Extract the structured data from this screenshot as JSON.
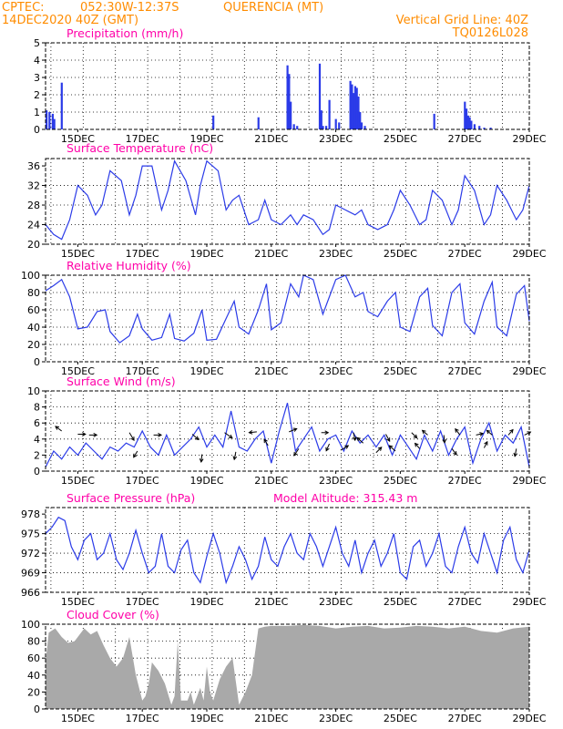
{
  "header": {
    "source": "CPTEC:",
    "coords": "052:30W-12:37S",
    "location": "QUERENCIA (MT)",
    "date": "14DEC2020 40Z (GMT)",
    "vgrid": "Vertical Grid Line: 40Z",
    "code": "TQ0126L028"
  },
  "colors": {
    "header": "#ff8c00",
    "panel_title": "#ff00a8",
    "series": "#2b3be8",
    "cloud": "#a9a9a9",
    "arrow": "#000000"
  },
  "chart_data": [
    {
      "id": "precip",
      "type": "bar",
      "title": "Precipitation (mm/h)",
      "ylim": [
        0,
        5
      ],
      "yticks": [
        "0",
        "1",
        "2",
        "3",
        "4",
        "5"
      ],
      "xlim": [
        14.0,
        29.0
      ],
      "xticks": [
        "15DEC",
        "17DEC",
        "19DEC",
        "21DEC",
        "23DEC",
        "25DEC",
        "27DEC",
        "29DEC"
      ],
      "grid": true,
      "x": [
        14.03,
        14.12,
        14.22,
        14.27,
        14.5,
        19.2,
        20.6,
        21.5,
        21.55,
        21.6,
        21.7,
        21.8,
        22.5,
        22.55,
        22.6,
        22.7,
        22.8,
        23.0,
        23.1,
        23.45,
        23.5,
        23.55,
        23.6,
        23.65,
        23.7,
        23.75,
        23.8,
        23.9,
        26.05,
        27.0,
        27.05,
        27.1,
        27.15,
        27.2,
        27.3,
        27.45,
        27.6,
        27.8
      ],
      "values": [
        1.1,
        1.0,
        0.9,
        0.6,
        2.7,
        0.8,
        0.7,
        3.7,
        3.2,
        1.6,
        0.3,
        0.2,
        3.8,
        1.1,
        0.2,
        0.2,
        1.7,
        0.6,
        0.4,
        2.8,
        2.6,
        2.1,
        2.5,
        2.4,
        1.9,
        1.0,
        0.4,
        0.2,
        0.9,
        1.6,
        1.2,
        0.8,
        0.7,
        0.5,
        0.3,
        0.2,
        0.1,
        0.1
      ]
    },
    {
      "id": "temp",
      "type": "line",
      "title": "Surface Temperature (nC)",
      "ylim": [
        20,
        37.5
      ],
      "yticks": [
        "20",
        "24",
        "28",
        "32",
        "36"
      ],
      "xlim": [
        14.0,
        29.0
      ],
      "xticks": [
        "15DEC",
        "17DEC",
        "19DEC",
        "21DEC",
        "23DEC",
        "25DEC",
        "27DEC",
        "29DEC"
      ],
      "grid": true,
      "x": [
        14.0,
        14.25,
        14.5,
        14.75,
        15.0,
        15.3,
        15.55,
        15.75,
        16.0,
        16.35,
        16.6,
        16.8,
        17.0,
        17.3,
        17.6,
        17.8,
        18.0,
        18.35,
        18.65,
        18.8,
        19.0,
        19.35,
        19.6,
        19.8,
        20.0,
        20.3,
        20.6,
        20.8,
        21.0,
        21.3,
        21.6,
        21.8,
        22.0,
        22.3,
        22.6,
        22.8,
        23.0,
        23.3,
        23.6,
        23.8,
        24.0,
        24.3,
        24.6,
        24.8,
        25.0,
        25.3,
        25.6,
        25.8,
        26.0,
        26.3,
        26.6,
        26.8,
        27.0,
        27.3,
        27.6,
        27.8,
        28.0,
        28.3,
        28.6,
        28.8,
        29.0
      ],
      "values": [
        24,
        22,
        21,
        25,
        32,
        30,
        26,
        28,
        35,
        33,
        26,
        30,
        36,
        36,
        27,
        31,
        37,
        33,
        26,
        32,
        37,
        35,
        27,
        29,
        30,
        24,
        25,
        29,
        25,
        24,
        26,
        24,
        26,
        25,
        22,
        23,
        28,
        27,
        26,
        27,
        24,
        23,
        24,
        27,
        31,
        28,
        24,
        25,
        31,
        29,
        24,
        27,
        34,
        31,
        24,
        26,
        32,
        29,
        25,
        27,
        32
      ]
    },
    {
      "id": "rh",
      "type": "line",
      "title": "Relative Humidity (%)",
      "ylim": [
        0,
        100
      ],
      "yticks": [
        "0",
        "20",
        "40",
        "60",
        "80",
        "100"
      ],
      "xlim": [
        14.0,
        29.0
      ],
      "xticks": [
        "15DEC",
        "17DEC",
        "19DEC",
        "21DEC",
        "23DEC",
        "25DEC",
        "27DEC",
        "29DEC"
      ],
      "grid": true,
      "x": [
        14.0,
        14.25,
        14.5,
        14.75,
        15.0,
        15.3,
        15.6,
        15.85,
        16.0,
        16.3,
        16.6,
        16.85,
        17.0,
        17.3,
        17.6,
        17.85,
        18.0,
        18.3,
        18.6,
        18.85,
        19.0,
        19.3,
        19.6,
        19.85,
        20.0,
        20.3,
        20.6,
        20.85,
        21.0,
        21.3,
        21.6,
        21.85,
        22.0,
        22.3,
        22.6,
        22.85,
        23.0,
        23.3,
        23.6,
        23.85,
        24.0,
        24.3,
        24.6,
        24.85,
        25.0,
        25.3,
        25.6,
        25.85,
        26.0,
        26.3,
        26.6,
        26.85,
        27.0,
        27.3,
        27.6,
        27.85,
        28.0,
        28.3,
        28.6,
        28.85,
        29.0
      ],
      "values": [
        82,
        88,
        95,
        75,
        38,
        40,
        58,
        60,
        35,
        22,
        30,
        55,
        38,
        25,
        28,
        55,
        27,
        24,
        33,
        60,
        25,
        26,
        50,
        70,
        40,
        32,
        60,
        90,
        37,
        45,
        90,
        75,
        100,
        95,
        55,
        80,
        95,
        100,
        75,
        80,
        58,
        52,
        70,
        80,
        40,
        35,
        75,
        85,
        42,
        30,
        80,
        90,
        45,
        32,
        70,
        92,
        40,
        30,
        78,
        88,
        47
      ]
    },
    {
      "id": "wind",
      "type": "line",
      "title": "Surface Wind (m/s)",
      "ylim": [
        0,
        10
      ],
      "yticks": [
        "0",
        "2",
        "4",
        "6",
        "8",
        "10"
      ],
      "xlim": [
        14.0,
        29.0
      ],
      "xticks": [
        "15DEC",
        "17DEC",
        "19DEC",
        "21DEC",
        "23DEC",
        "25DEC",
        "27DEC",
        "29DEC"
      ],
      "grid": true,
      "x": [
        14.0,
        14.25,
        14.5,
        14.75,
        15.0,
        15.25,
        15.5,
        15.75,
        16.0,
        16.25,
        16.5,
        16.75,
        17.0,
        17.25,
        17.5,
        17.75,
        18.0,
        18.25,
        18.5,
        18.75,
        19.0,
        19.25,
        19.5,
        19.75,
        20.0,
        20.25,
        20.5,
        20.75,
        21.0,
        21.25,
        21.5,
        21.75,
        22.0,
        22.25,
        22.5,
        22.75,
        23.0,
        23.25,
        23.5,
        23.75,
        24.0,
        24.25,
        24.5,
        24.75,
        25.0,
        25.25,
        25.5,
        25.75,
        26.0,
        26.25,
        26.5,
        26.75,
        27.0,
        27.25,
        27.5,
        27.75,
        28.0,
        28.25,
        28.5,
        28.75,
        29.0
      ],
      "values": [
        0.5,
        2.5,
        1.5,
        3,
        2,
        3.5,
        2.5,
        1.5,
        3,
        2.5,
        3.5,
        3,
        5,
        3,
        2,
        4.5,
        2,
        3,
        4,
        5.5,
        3,
        4.5,
        3,
        7.5,
        3,
        2.5,
        4,
        5,
        1,
        5,
        8.5,
        2.5,
        4,
        5.5,
        2.5,
        4,
        4.5,
        2.5,
        5,
        3.5,
        4.5,
        3,
        4.5,
        2,
        4.5,
        3,
        1.5,
        4.5,
        2.5,
        5,
        2,
        4,
        5.5,
        1,
        4,
        6,
        2.5,
        4.5,
        3.5,
        5.5,
        0.5
      ],
      "arrows": {
        "x": [
          14.5,
          15.0,
          15.35,
          16.6,
          16.85,
          17.35,
          18.55,
          18.85,
          19.55,
          19.9,
          20.55,
          20.9,
          21.55,
          21.85,
          22.55,
          22.8,
          23.15,
          23.55,
          23.85,
          24.25,
          24.55,
          24.85,
          25.35,
          25.6,
          25.85,
          26.35,
          26.6,
          26.85,
          27.35,
          27.6,
          27.85,
          28.35,
          28.6,
          28.85
        ],
        "y": [
          5,
          4.6,
          4.5,
          4.8,
          2.5,
          4.5,
          4.6,
          2.1,
          4.8,
          2.4,
          4.9,
          3.2,
          4.9,
          2.8,
          4.8,
          3.4,
          2.6,
          4.8,
          3.5,
          2.3,
          4.6,
          2.5,
          4.8,
          2.8,
          4.5,
          4.5,
          2.8,
          4.5,
          4.5,
          2.9,
          4.5,
          4.5,
          2.8,
          4.5
        ],
        "u": [
          -0.4,
          0.5,
          0.5,
          0.3,
          -0.25,
          0.5,
          0.4,
          -0.05,
          0.5,
          -0.1,
          -0.5,
          -0.25,
          0.5,
          -0.3,
          0.45,
          -0.2,
          0.5,
          0.1,
          -0.4,
          0.35,
          0.25,
          -0.4,
          0.35,
          -0.3,
          -0.35,
          0.05,
          0.3,
          -0.3,
          0.45,
          0.2,
          -0.35,
          0.3,
          -0.1,
          0.4
        ],
        "v": [
          0.3,
          0,
          0,
          -0.5,
          -0.4,
          0,
          -0.35,
          -0.5,
          -0.35,
          -0.5,
          -0.05,
          0.4,
          0.2,
          -0.45,
          0,
          -0.45,
          0.3,
          -0.5,
          0.35,
          0.35,
          -0.45,
          0.35,
          -0.35,
          0.35,
          0.3,
          -0.5,
          -0.4,
          0.4,
          0.1,
          0.4,
          0.3,
          0.35,
          -0.5,
          0.2
        ]
      }
    },
    {
      "id": "pres",
      "type": "line",
      "title": "Surface Pressure (hPa)",
      "subtitle": "Model Altitude: 315.43 m",
      "ylim": [
        966,
        979
      ],
      "yticks": [
        "966",
        "969",
        "972",
        "975",
        "978"
      ],
      "ytick_values": [
        966,
        969,
        972,
        975,
        978
      ],
      "xlim": [
        14.0,
        29.0
      ],
      "xticks": [
        "15DEC",
        "17DEC",
        "19DEC",
        "21DEC",
        "23DEC",
        "25DEC",
        "27DEC",
        "29DEC"
      ],
      "grid": true,
      "x": [
        14.0,
        14.2,
        14.4,
        14.6,
        14.8,
        15.0,
        15.2,
        15.4,
        15.6,
        15.8,
        16.0,
        16.2,
        16.4,
        16.6,
        16.8,
        17.0,
        17.2,
        17.4,
        17.6,
        17.8,
        18.0,
        18.2,
        18.4,
        18.6,
        18.8,
        19.0,
        19.2,
        19.4,
        19.6,
        19.8,
        20.0,
        20.2,
        20.4,
        20.6,
        20.8,
        21.0,
        21.2,
        21.4,
        21.6,
        21.8,
        22.0,
        22.2,
        22.4,
        22.6,
        22.8,
        23.0,
        23.2,
        23.4,
        23.6,
        23.8,
        24.0,
        24.2,
        24.4,
        24.6,
        24.8,
        25.0,
        25.2,
        25.4,
        25.6,
        25.8,
        26.0,
        26.2,
        26.4,
        26.6,
        26.8,
        27.0,
        27.2,
        27.4,
        27.6,
        27.8,
        28.0,
        28.2,
        28.4,
        28.6,
        28.8,
        29.0
      ],
      "values": [
        975,
        976,
        977.5,
        977,
        973,
        971,
        974,
        975,
        971,
        972,
        975,
        971,
        969.5,
        972,
        975.5,
        972,
        969,
        970,
        975,
        970,
        969,
        972.5,
        974,
        969,
        967.5,
        971.5,
        975,
        972,
        967.5,
        970,
        973,
        971,
        968,
        970,
        974.5,
        971,
        970,
        973,
        975,
        972,
        971,
        975,
        973,
        970,
        973,
        976,
        972,
        970,
        974,
        969,
        972,
        974,
        970,
        972,
        975,
        969,
        968,
        973,
        974,
        970,
        972,
        975,
        970,
        969,
        973,
        976,
        972,
        970.5,
        975,
        972,
        969,
        974,
        976,
        971,
        969,
        972.5
      ]
    },
    {
      "id": "cloud",
      "type": "area",
      "title": "Cloud Cover (%)",
      "ylim": [
        0,
        100
      ],
      "yticks": [
        "0",
        "20",
        "40",
        "60",
        "80",
        "100"
      ],
      "xlim": [
        14.0,
        29.0
      ],
      "xticks": [
        "15DEC",
        "17DEC",
        "19DEC",
        "21DEC",
        "23DEC",
        "25DEC",
        "27DEC",
        "29DEC"
      ],
      "grid": true,
      "x": [
        14.0,
        14.1,
        14.3,
        14.5,
        14.7,
        14.9,
        15.0,
        15.2,
        15.4,
        15.6,
        15.8,
        16.0,
        16.2,
        16.4,
        16.6,
        16.8,
        17.0,
        17.1,
        17.2,
        17.3,
        17.5,
        17.7,
        17.9,
        18.0,
        18.1,
        18.2,
        18.4,
        18.5,
        18.6,
        18.7,
        18.8,
        18.9,
        19.0,
        19.1,
        19.2,
        19.4,
        19.6,
        19.8,
        20.0,
        20.2,
        20.4,
        20.6,
        20.8,
        21.0,
        21.5,
        22.0,
        22.5,
        23.0,
        23.5,
        24.0,
        24.5,
        25.0,
        25.5,
        26.0,
        26.5,
        27.0,
        27.5,
        28.0,
        28.5,
        29.0
      ],
      "values": [
        55,
        90,
        95,
        85,
        78,
        80,
        85,
        95,
        88,
        92,
        75,
        60,
        50,
        60,
        85,
        40,
        10,
        15,
        30,
        55,
        45,
        30,
        5,
        15,
        80,
        10,
        10,
        20,
        5,
        15,
        25,
        10,
        50,
        20,
        10,
        35,
        50,
        60,
        5,
        20,
        40,
        95,
        97,
        98,
        98,
        99,
        98,
        95,
        97,
        98,
        95,
        96,
        98,
        97,
        95,
        97,
        92,
        90,
        95,
        97
      ]
    }
  ]
}
